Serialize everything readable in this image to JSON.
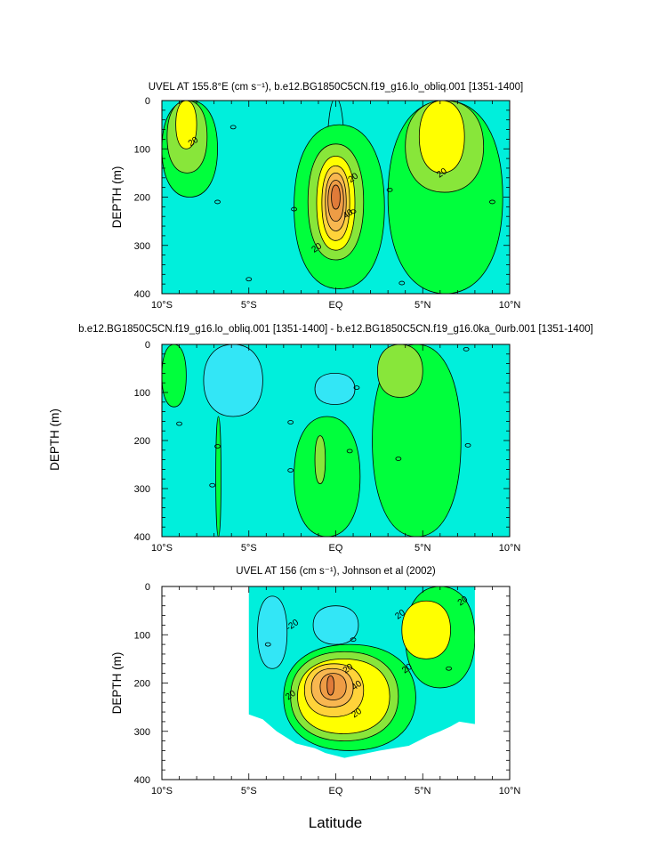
{
  "figure": {
    "x_axis_label": "Latitude",
    "middle_panel_y_label": "DEPTH (m)"
  },
  "colors": {
    "yellow": "#ffff00",
    "gold": "#ffd33a",
    "light_orange": "#f8b750",
    "orange": "#ee9c45",
    "dark_orange": "#e07b39",
    "green": "#00ff3c",
    "light_green": "#88e63a",
    "cyan": "#00efdc",
    "light_cyan": "#33e6f6",
    "line": "#000000"
  },
  "chart_data": [
    {
      "type": "heatmap",
      "subtype": "filled-contour",
      "title": "UVEL AT 155.8°E (cm s⁻¹), b.e12.BG1850C5CN.f19_g16.lo_obliq.001 [1351-1400]",
      "xlabel": "",
      "ylabel": "DEPTH (m)",
      "xlim": [
        -10,
        10
      ],
      "ylim": [
        400,
        0
      ],
      "x_ticks": [
        "10°S",
        "5°S",
        "EQ",
        "5°N",
        "10°N"
      ],
      "x_tick_values": [
        -10,
        -5,
        0,
        5,
        10
      ],
      "y_ticks": [
        "0",
        "100",
        "200",
        "300",
        "400"
      ],
      "y_tick_values": [
        0,
        100,
        200,
        300,
        400
      ],
      "background_level": "cyan",
      "regions": [
        {
          "level": "cyan",
          "lat": [
            -0.5,
            0.5
          ],
          "depth": [
            -5,
            260
          ],
          "note": "light cyan near surface"
        },
        {
          "level": "green",
          "lat": [
            -10,
            -6.8
          ],
          "depth": [
            0,
            200
          ]
        },
        {
          "level": "green",
          "lat": [
            -2.4,
            2.8
          ],
          "depth": [
            50,
            390
          ]
        },
        {
          "level": "green",
          "lat": [
            3,
            9.6
          ],
          "depth": [
            0,
            400
          ]
        },
        {
          "level": "light_green",
          "lat": [
            -9.7,
            -7.4
          ],
          "depth": [
            0,
            150
          ]
        },
        {
          "level": "light_green",
          "lat": [
            -1.6,
            1.6
          ],
          "depth": [
            90,
            330
          ]
        },
        {
          "level": "light_green",
          "lat": [
            4,
            8.5
          ],
          "depth": [
            0,
            190
          ]
        },
        {
          "level": "yellow",
          "lat": [
            -9.2,
            -8
          ],
          "depth": [
            0,
            100
          ]
        },
        {
          "level": "yellow",
          "lat": [
            -1.1,
            1.1
          ],
          "depth": [
            115,
            310
          ]
        },
        {
          "level": "yellow",
          "lat": [
            4.8,
            7.4
          ],
          "depth": [
            0,
            150
          ]
        },
        {
          "level": "gold",
          "lat": [
            -0.8,
            0.8
          ],
          "depth": [
            135,
            290
          ]
        },
        {
          "level": "light_orange",
          "lat": [
            -0.6,
            0.6
          ],
          "depth": [
            150,
            270
          ]
        },
        {
          "level": "orange",
          "lat": [
            -0.45,
            0.45
          ],
          "depth": [
            165,
            250
          ]
        },
        {
          "level": "dark_orange",
          "lat": [
            -0.25,
            0.25
          ],
          "depth": [
            175,
            225
          ]
        }
      ],
      "contour_labels": [
        {
          "text": "20",
          "lat": -8.2,
          "depth": 85
        },
        {
          "text": "20",
          "lat": 1.0,
          "depth": 160
        },
        {
          "text": "40",
          "lat": 0.7,
          "depth": 235
        },
        {
          "text": "20",
          "lat": -1.1,
          "depth": 305
        },
        {
          "text": "20",
          "lat": 6.1,
          "depth": 150
        },
        {
          "text": "0",
          "lat": -5.9,
          "depth": 55
        },
        {
          "text": "0",
          "lat": -6.8,
          "depth": 210
        },
        {
          "text": "0",
          "lat": -2.4,
          "depth": 225
        },
        {
          "text": "0",
          "lat": -5.0,
          "depth": 370
        },
        {
          "text": "0",
          "lat": 1.0,
          "depth": 230
        },
        {
          "text": "0",
          "lat": 3.1,
          "depth": 185
        },
        {
          "text": "0",
          "lat": 3.8,
          "depth": 378
        },
        {
          "text": "0",
          "lat": 9.0,
          "depth": 210
        }
      ]
    },
    {
      "type": "heatmap",
      "subtype": "filled-contour",
      "title": "b.e12.BG1850C5CN.f19_g16.lo_obliq.001 [1351-1400] - b.e12.BG1850C5CN.f19_g16.0ka_0urb.001 [1351-1400]",
      "xlabel": "",
      "ylabel": "DEPTH (m)",
      "xlim": [
        -10,
        10
      ],
      "ylim": [
        400,
        0
      ],
      "x_ticks": [
        "10°S",
        "5°S",
        "EQ",
        "5°N",
        "10°N"
      ],
      "x_tick_values": [
        -10,
        -5,
        0,
        5,
        10
      ],
      "y_ticks": [
        "0",
        "100",
        "200",
        "300",
        "400"
      ],
      "y_tick_values": [
        0,
        100,
        200,
        300,
        400
      ],
      "background_level": "cyan",
      "regions": [
        {
          "level": "green",
          "lat": [
            -10,
            -8.6
          ],
          "depth": [
            0,
            130
          ]
        },
        {
          "level": "green",
          "lat": [
            -2.4,
            1.4
          ],
          "depth": [
            150,
            400
          ]
        },
        {
          "level": "green",
          "lat": [
            2.1,
            7.2
          ],
          "depth": [
            0,
            400
          ]
        },
        {
          "level": "green",
          "lat": [
            -6.9,
            -6.6
          ],
          "depth": [
            150,
            400
          ]
        },
        {
          "level": "light_green",
          "lat": [
            -1.2,
            -0.6
          ],
          "depth": [
            190,
            290
          ]
        },
        {
          "level": "light_green",
          "lat": [
            2.4,
            5
          ],
          "depth": [
            0,
            110
          ]
        },
        {
          "level": "light_cyan",
          "lat": [
            -1.2,
            1.1
          ],
          "depth": [
            60,
            125
          ]
        },
        {
          "level": "light_cyan",
          "lat": [
            -7.6,
            -4.2
          ],
          "depth": [
            0,
            150
          ]
        }
      ],
      "contour_labels": [
        {
          "text": "0",
          "lat": -9.0,
          "depth": 165
        },
        {
          "text": "0",
          "lat": -6.8,
          "depth": 212
        },
        {
          "text": "0",
          "lat": -7.1,
          "depth": 293
        },
        {
          "text": "0",
          "lat": -2.6,
          "depth": 162
        },
        {
          "text": "0",
          "lat": -2.6,
          "depth": 262
        },
        {
          "text": "0",
          "lat": 1.2,
          "depth": 90
        },
        {
          "text": "0",
          "lat": 0.8,
          "depth": 222
        },
        {
          "text": "0",
          "lat": 3.6,
          "depth": 238
        },
        {
          "text": "0",
          "lat": 7.5,
          "depth": 10
        },
        {
          "text": "0",
          "lat": 7.6,
          "depth": 210
        }
      ]
    },
    {
      "type": "heatmap",
      "subtype": "filled-contour",
      "title": "UVEL AT 156 (cm s⁻¹), Johnson et al (2002)",
      "xlabel": "Latitude",
      "ylabel": "DEPTH (m)",
      "xlim": [
        -10,
        10
      ],
      "ylim": [
        400,
        0
      ],
      "x_ticks": [
        "10°S",
        "5°S",
        "EQ",
        "5°N",
        "10°N"
      ],
      "x_tick_values": [
        -10,
        -5,
        0,
        5,
        10
      ],
      "y_ticks": [
        "0",
        "100",
        "200",
        "300",
        "400"
      ],
      "y_tick_values": [
        0,
        100,
        200,
        300,
        400
      ],
      "data_domain": {
        "lat": [
          -5,
          8
        ],
        "depth": [
          0,
          360
        ],
        "note": "observations; white outside"
      },
      "background_level": "cyan",
      "regions": [
        {
          "level": "light_cyan",
          "lat": [
            -4.5,
            -2.8
          ],
          "depth": [
            20,
            170
          ]
        },
        {
          "level": "light_cyan",
          "lat": [
            -1.3,
            1.3
          ],
          "depth": [
            40,
            120
          ]
        },
        {
          "level": "green",
          "lat": [
            -3,
            4.6
          ],
          "depth": [
            120,
            340
          ]
        },
        {
          "level": "green",
          "lat": [
            4,
            8
          ],
          "depth": [
            0,
            210
          ]
        },
        {
          "level": "light_green",
          "lat": [
            -2.6,
            3.6
          ],
          "depth": [
            135,
            320
          ]
        },
        {
          "level": "yellow",
          "lat": [
            -2.2,
            3.1
          ],
          "depth": [
            150,
            305
          ]
        },
        {
          "level": "yellow",
          "lat": [
            3.8,
            6.6
          ],
          "depth": [
            30,
            150
          ]
        },
        {
          "level": "gold",
          "lat": [
            -1.8,
            1.6
          ],
          "depth": [
            160,
            270
          ]
        },
        {
          "level": "light_orange",
          "lat": [
            -1.4,
            1
          ],
          "depth": [
            170,
            250
          ]
        },
        {
          "level": "orange",
          "lat": [
            -0.9,
            0.6
          ],
          "depth": [
            180,
            235
          ]
        },
        {
          "level": "dark_orange",
          "lat": [
            -0.5,
            -0.1
          ],
          "depth": [
            185,
            225
          ]
        }
      ],
      "contour_labels": [
        {
          "text": "-20",
          "lat": -2.5,
          "depth": 80
        },
        {
          "text": "20",
          "lat": 0.7,
          "depth": 170
        },
        {
          "text": "40",
          "lat": 1.2,
          "depth": 205
        },
        {
          "text": "20",
          "lat": -2.6,
          "depth": 225
        },
        {
          "text": "20",
          "lat": 1.2,
          "depth": 262
        },
        {
          "text": "20",
          "lat": 3.7,
          "depth": 58
        },
        {
          "text": "20",
          "lat": 4.1,
          "depth": 170
        },
        {
          "text": "20",
          "lat": 7.3,
          "depth": 30
        },
        {
          "text": "0",
          "lat": 1.0,
          "depth": 110
        },
        {
          "text": "0",
          "lat": -3.9,
          "depth": 120
        },
        {
          "text": "0",
          "lat": 6.5,
          "depth": 170
        }
      ]
    }
  ]
}
